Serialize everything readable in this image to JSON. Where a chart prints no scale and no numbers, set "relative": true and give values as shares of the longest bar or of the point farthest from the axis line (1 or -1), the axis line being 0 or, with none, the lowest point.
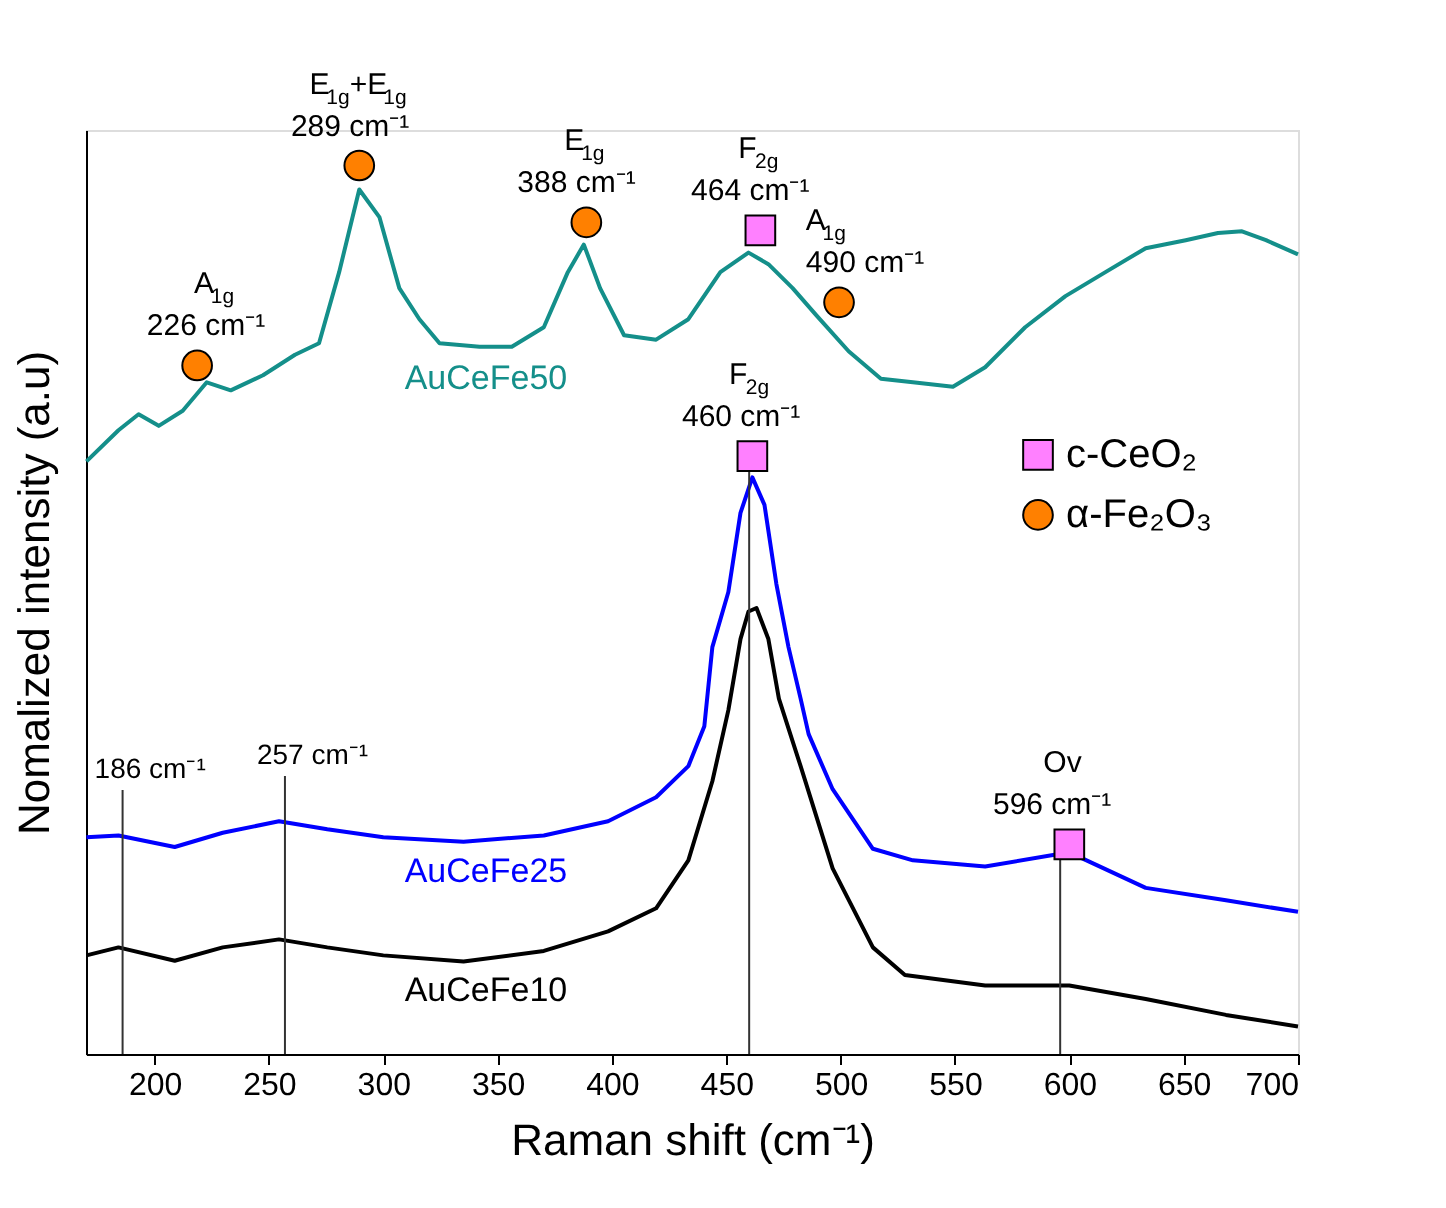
{
  "chart_data": {
    "type": "line",
    "relative": true,
    "xlabel": "Raman shift (cm⁻¹)",
    "ylabel": "Nomalized intensity (a.u)",
    "xlim": [
      170,
      700
    ],
    "xticks": [
      200,
      250,
      300,
      350,
      400,
      450,
      500,
      550,
      600,
      650,
      700
    ],
    "grid": false,
    "legend": "right",
    "series": [
      {
        "name": "AuCeFe50",
        "color": "#148f8a",
        "x": [
          170.2,
          184.2,
          193.0,
          201.8,
          212.3,
          222.8,
          233.3,
          247.4,
          261.4,
          271.9,
          280.7,
          289.5,
          298.3,
          307.0,
          315.8,
          324.6,
          342.1,
          356.2,
          370.2,
          380.7,
          387.7,
          394.8,
          405.3,
          419.3,
          433.4,
          447.4,
          459.7,
          468.4,
          479.0,
          489.5,
          503.5,
          517.6,
          531.6,
          549.1,
          563.2,
          580.7,
          598.3,
          615.8,
          633.4,
          650.9,
          665.0,
          675.5,
          686.0,
          700.0
        ],
        "values": [
          0.667,
          0.702,
          0.72,
          0.707,
          0.724,
          0.756,
          0.747,
          0.764,
          0.787,
          0.8,
          0.88,
          0.973,
          0.942,
          0.862,
          0.827,
          0.8,
          0.796,
          0.796,
          0.818,
          0.88,
          0.911,
          0.862,
          0.809,
          0.804,
          0.827,
          0.88,
          0.902,
          0.889,
          0.862,
          0.831,
          0.791,
          0.76,
          0.756,
          0.751,
          0.773,
          0.818,
          0.853,
          0.88,
          0.907,
          0.916,
          0.924,
          0.926,
          0.916,
          0.9
        ]
      },
      {
        "name": "AuCeFe25",
        "color": "#0000ff",
        "x": [
          170.2,
          184.2,
          208.8,
          229.8,
          254.4,
          275.5,
          300.0,
          335.1,
          370.2,
          398.3,
          419.3,
          433.4,
          440.4,
          443.9,
          450.9,
          456.2,
          461.4,
          466.7,
          471.9,
          477.2,
          482.5,
          486.0,
          496.5,
          514.1,
          531.6,
          563.2,
          600.0,
          633.4,
          668.5,
          700.0
        ],
        "values": [
          0.244,
          0.246,
          0.233,
          0.249,
          0.262,
          0.253,
          0.244,
          0.239,
          0.246,
          0.262,
          0.289,
          0.324,
          0.369,
          0.458,
          0.52,
          0.609,
          0.649,
          0.618,
          0.529,
          0.458,
          0.4,
          0.36,
          0.298,
          0.231,
          0.218,
          0.211,
          0.227,
          0.187,
          0.173,
          0.16
        ]
      },
      {
        "name": "AuCeFe10",
        "color": "#000000",
        "x": [
          170.2,
          184.2,
          208.8,
          229.8,
          254.4,
          275.5,
          300.0,
          335.1,
          370.2,
          398.3,
          419.3,
          433.4,
          443.9,
          450.9,
          456.2,
          459.7,
          463.2,
          468.4,
          473.0,
          482.5,
          496.5,
          514.1,
          528.1,
          563.2,
          600.0,
          633.4,
          668.5,
          700.0
        ],
        "values": [
          0.111,
          0.12,
          0.105,
          0.12,
          0.129,
          0.12,
          0.111,
          0.104,
          0.116,
          0.138,
          0.164,
          0.218,
          0.307,
          0.387,
          0.467,
          0.498,
          0.502,
          0.467,
          0.4,
          0.324,
          0.209,
          0.12,
          0.089,
          0.077,
          0.077,
          0.062,
          0.044,
          0.031
        ]
      },
      {
        "name": "c-CeO₂",
        "type": "scatter",
        "marker": "square",
        "color": "#ff80ff",
        "x": [
          464.9,
          461.4,
          600.0
        ],
        "values": [
          0.927,
          0.673,
          0.236
        ]
      },
      {
        "name": "α-Fe₂O₃",
        "type": "scatter",
        "marker": "circle",
        "color": "#ff8000",
        "x": [
          218.6,
          289.5,
          388.8,
          499.3
        ],
        "values": [
          0.775,
          1.0,
          0.936,
          0.846
        ]
      }
    ],
    "ref_lines": [
      {
        "axis": "x",
        "value": 186,
        "label": "186 cm⁻¹"
      },
      {
        "axis": "x",
        "value": 257,
        "label": "257 cm⁻¹"
      },
      {
        "axis": "x",
        "value": 460
      },
      {
        "axis": "x",
        "value": 596
      }
    ],
    "annotations": [
      {
        "text": "A$_{1g}$\n226 cm⁻¹",
        "x": 226,
        "y": 0.775
      },
      {
        "text": "E$_{1g}$+E$_{1g}$\n289 cm⁻¹",
        "x": 289,
        "y": 1.0
      },
      {
        "text": "E$_{1g}$\n388 cm⁻¹",
        "x": 388,
        "y": 0.936
      },
      {
        "text": "F$_{2g}$\n464 cm⁻¹",
        "x": 464,
        "y": 0.927
      },
      {
        "text": "A$_{1g}$\n490 cm⁻¹",
        "x": 490,
        "y": 0.846
      },
      {
        "text": "F$_{2g}$\n460 cm⁻¹",
        "x": 460,
        "y": 0.673
      },
      {
        "text": "Ov\n596 cm⁻¹",
        "x": 596,
        "y": 0.236
      }
    ]
  }
}
